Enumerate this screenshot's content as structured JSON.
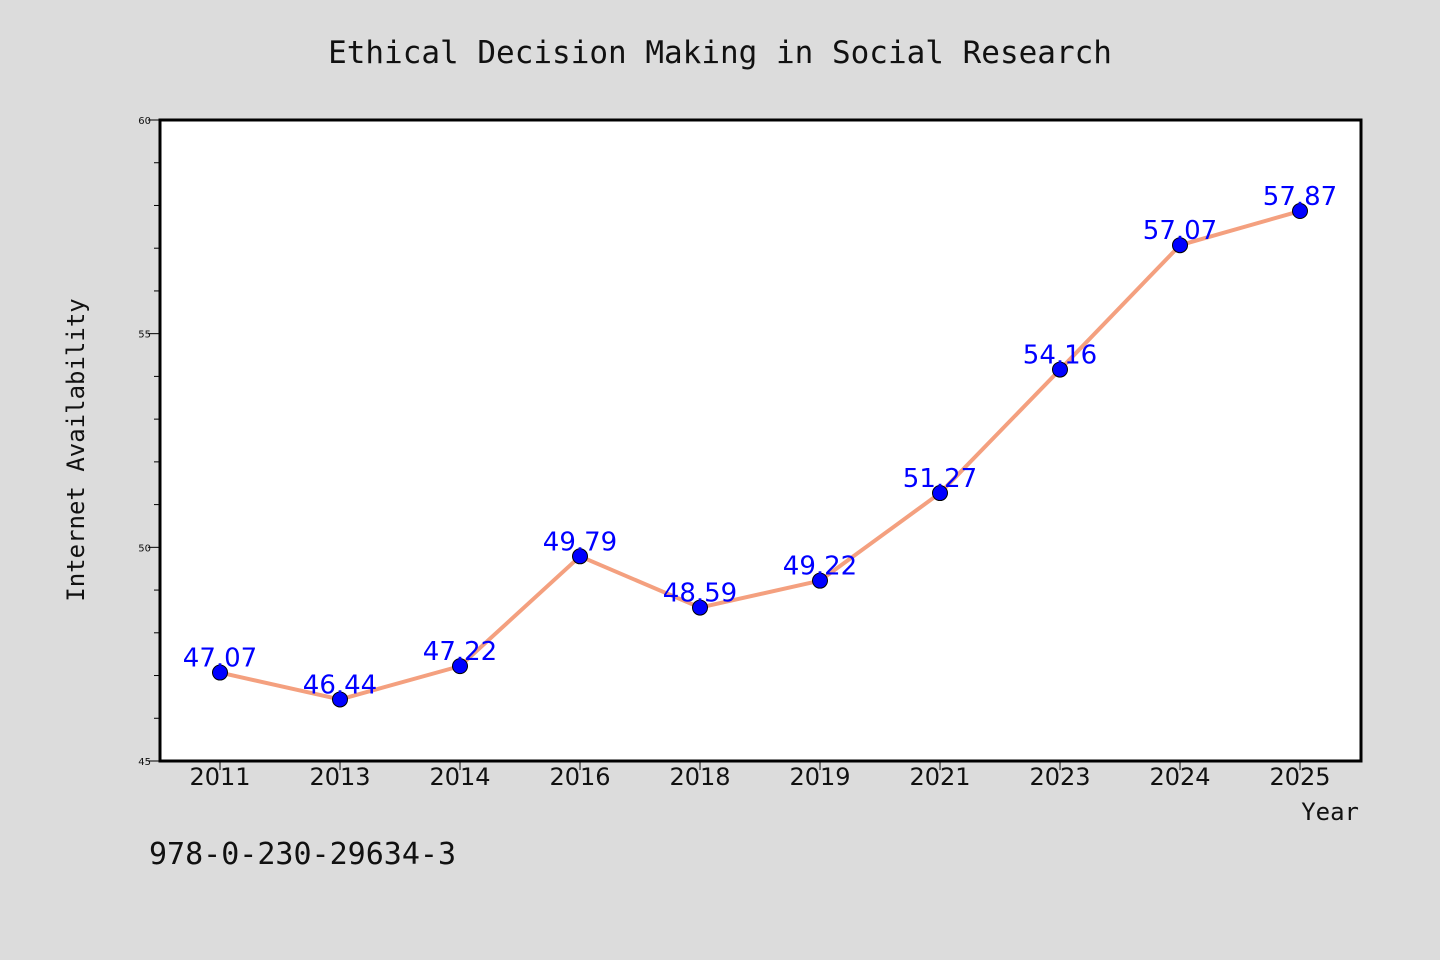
{
  "chart_data": {
    "type": "line",
    "title": "Ethical Decision Making in Social Research",
    "xlabel": "Year",
    "ylabel": "Internet Availability",
    "categories": [
      "2011",
      "2013",
      "2014",
      "2016",
      "2018",
      "2019",
      "2021",
      "2023",
      "2024",
      "2025"
    ],
    "values": [
      47.07,
      46.44,
      47.22,
      49.79,
      48.59,
      49.22,
      51.27,
      54.16,
      57.07,
      57.87
    ],
    "data_labels": [
      "47.07",
      "46.44",
      "47.22",
      "49.79",
      "48.59",
      "49.22",
      "51.27",
      "54.16",
      "57.07",
      "57.87"
    ],
    "ylim": [
      45,
      60
    ],
    "y_major_ticks": [
      "45",
      "50",
      "55",
      "60"
    ],
    "y_minor_step": 1,
    "grid": false,
    "legend": "none",
    "colors": {
      "line": "#f4a07f",
      "marker": "#0000ff",
      "data_label": "#0000ff",
      "background": "#dcdcdc",
      "plot_area": "#ffffff"
    }
  },
  "footer": {
    "isbn": "978-0-230-29634-3"
  }
}
